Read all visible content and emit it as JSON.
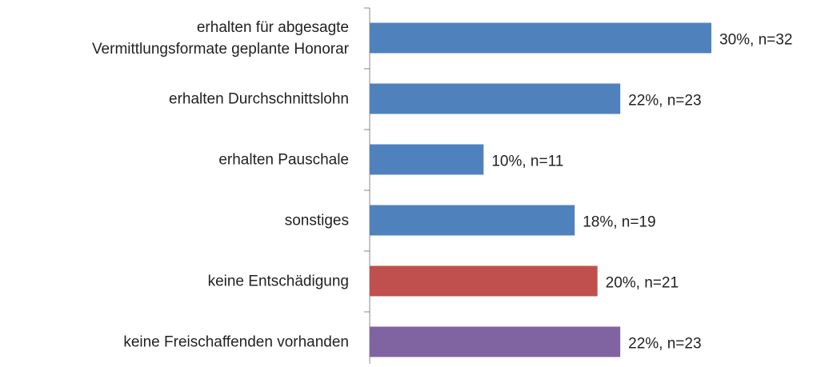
{
  "chart_data": {
    "type": "bar",
    "orientation": "horizontal",
    "categories": [
      "erhalten für abgesagte\nVermittlungsformate geplante Honorar",
      "erhalten Durchschnittslohn",
      "erhalten Pauschale",
      "sonstiges",
      "keine Entschädigung",
      "keine Freischaffenden vorhanden"
    ],
    "values": [
      30,
      22,
      10,
      18,
      20,
      22
    ],
    "value_labels": [
      "30%, n=32",
      "22%, n=23",
      "10%, n=11",
      "18%, n=19",
      "20%, n=21",
      "22%, n=23"
    ],
    "colors": [
      "#4f81bd",
      "#4f81bd",
      "#4f81bd",
      "#4f81bd",
      "#c0504d",
      "#8064a2"
    ],
    "xlim": [
      0,
      30
    ]
  }
}
